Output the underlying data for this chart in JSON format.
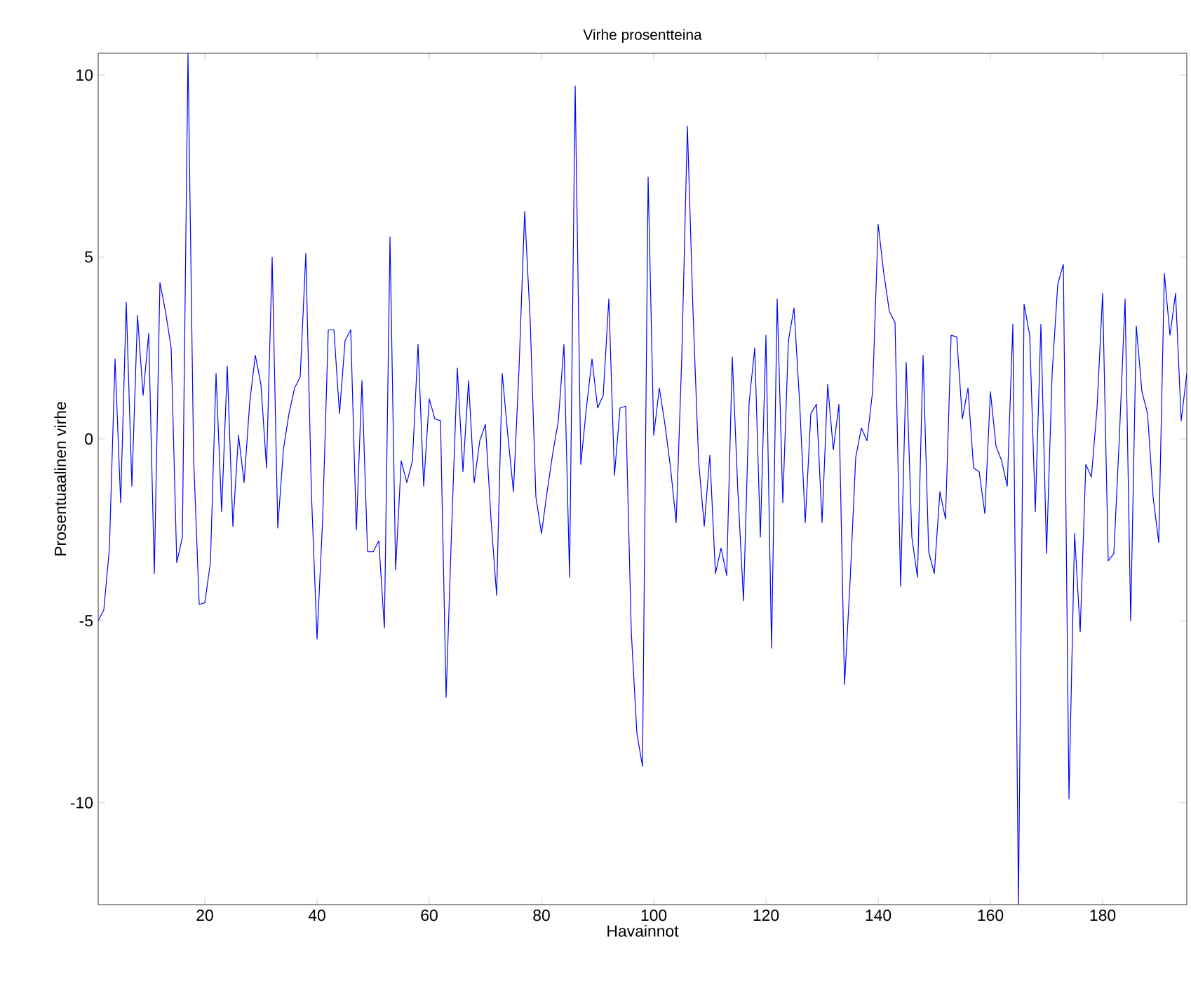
{
  "chart_data": {
    "type": "line",
    "title": "Virhe prosentteina",
    "xlabel": "Havainnot",
    "ylabel": "Prosentuaalinen virhe",
    "x": [
      1,
      2,
      3,
      4,
      5,
      6,
      7,
      8,
      9,
      10,
      11,
      12,
      13,
      14,
      15,
      16,
      17,
      18,
      19,
      20,
      21,
      22,
      23,
      24,
      25,
      26,
      27,
      28,
      29,
      30,
      31,
      32,
      33,
      34,
      35,
      36,
      37,
      38,
      39,
      40,
      41,
      42,
      43,
      44,
      45,
      46,
      47,
      48,
      49,
      50,
      51,
      52,
      53,
      54,
      55,
      56,
      57,
      58,
      59,
      60,
      61,
      62,
      63,
      64,
      65,
      66,
      67,
      68,
      69,
      70,
      71,
      72,
      73,
      74,
      75,
      76,
      77,
      78,
      79,
      80,
      81,
      82,
      83,
      84,
      85,
      86,
      87,
      88,
      89,
      90,
      91,
      92,
      93,
      94,
      95,
      96,
      97,
      98,
      99,
      100,
      101,
      102,
      103,
      104,
      105,
      106,
      107,
      108,
      109,
      110,
      111,
      112,
      113,
      114,
      115,
      116,
      117,
      118,
      119,
      120,
      121,
      122,
      123,
      124,
      125,
      126,
      127,
      128,
      129,
      130,
      131,
      132,
      133,
      134,
      135,
      136,
      137,
      138,
      139,
      140,
      141,
      142,
      143,
      144,
      145,
      146,
      147,
      148,
      149,
      150,
      151,
      152,
      153,
      154,
      155,
      156,
      157,
      158,
      159,
      160,
      161,
      162,
      163,
      164,
      165,
      166,
      167,
      168,
      169,
      170,
      171,
      172,
      173,
      174,
      175,
      176,
      177,
      178,
      179,
      180,
      181,
      182,
      183,
      184,
      185,
      186,
      187,
      188,
      189,
      190,
      191,
      192,
      193,
      194,
      195
    ],
    "series": [
      {
        "color": "#0000ff",
        "values": [
          -5.0,
          -4.7,
          -3.0,
          2.2,
          -1.75,
          3.75,
          -1.3,
          3.4,
          1.2,
          2.9,
          -3.7,
          4.3,
          3.5,
          2.5,
          -3.4,
          -2.7,
          10.6,
          -0.5,
          -4.55,
          -4.5,
          -3.4,
          1.8,
          -2.0,
          2.0,
          -2.4,
          0.1,
          -1.2,
          1.0,
          2.3,
          1.5,
          -0.8,
          5.0,
          -2.45,
          -0.3,
          0.7,
          1.4,
          1.7,
          5.1,
          -1.5,
          -5.5,
          -2.2,
          3.0,
          3.0,
          0.7,
          2.7,
          3.0,
          -2.5,
          1.6,
          -3.1,
          -3.1,
          -2.8,
          -5.2,
          5.55,
          -3.6,
          -0.6,
          -1.2,
          -0.6,
          2.6,
          -1.3,
          1.1,
          0.55,
          0.5,
          -7.1,
          -2.4,
          1.95,
          -0.9,
          1.6,
          -1.2,
          -0.05,
          0.4,
          -2.2,
          -4.3,
          1.8,
          0.1,
          -1.45,
          1.95,
          6.25,
          3.2,
          -1.6,
          -2.6,
          -1.45,
          -0.4,
          0.5,
          2.6,
          -3.8,
          9.7,
          -0.7,
          0.85,
          2.2,
          0.85,
          1.2,
          3.85,
          -1.0,
          0.85,
          0.9,
          -5.3,
          -8.1,
          -9.0,
          7.2,
          0.1,
          1.4,
          0.4,
          -0.8,
          -2.3,
          2.25,
          8.6,
          3.5,
          -0.6,
          -2.4,
          -0.45,
          -3.7,
          -3.0,
          -3.75,
          2.25,
          -1.45,
          -4.45,
          1.0,
          2.5,
          -2.7,
          2.85,
          -5.75,
          3.85,
          -1.75,
          2.7,
          3.6,
          1.0,
          -2.3,
          0.7,
          0.95,
          -2.3,
          1.5,
          -0.3,
          0.95,
          -6.75,
          -3.9,
          -0.5,
          0.3,
          -0.05,
          1.3,
          5.9,
          4.55,
          3.5,
          3.2,
          -4.05,
          2.1,
          -2.7,
          -3.8,
          2.3,
          -3.1,
          -3.7,
          -1.45,
          -2.2,
          2.85,
          2.8,
          0.55,
          1.4,
          -0.8,
          -0.9,
          -2.05,
          1.3,
          -0.2,
          -0.6,
          -1.3,
          3.15,
          -12.8,
          3.7,
          2.85,
          -2.0,
          3.15,
          -3.15,
          1.8,
          4.25,
          4.8,
          -9.9,
          -2.6,
          -5.3,
          -0.7,
          -1.05,
          0.85,
          4.0,
          -3.35,
          -3.15,
          0.1,
          3.85,
          -5.0,
          3.1,
          1.3,
          0.7,
          -1.6,
          -2.85,
          4.55,
          2.85,
          4.0,
          0.5,
          1.8
        ]
      }
    ],
    "xlim": [
      1,
      195
    ],
    "ylim": [
      -12.8,
      10.6
    ],
    "xticks": [
      20,
      40,
      60,
      80,
      100,
      120,
      140,
      160,
      180
    ],
    "yticks": [
      -10,
      -5,
      0,
      5,
      10
    ],
    "line_style": "solid",
    "marker": "none"
  }
}
